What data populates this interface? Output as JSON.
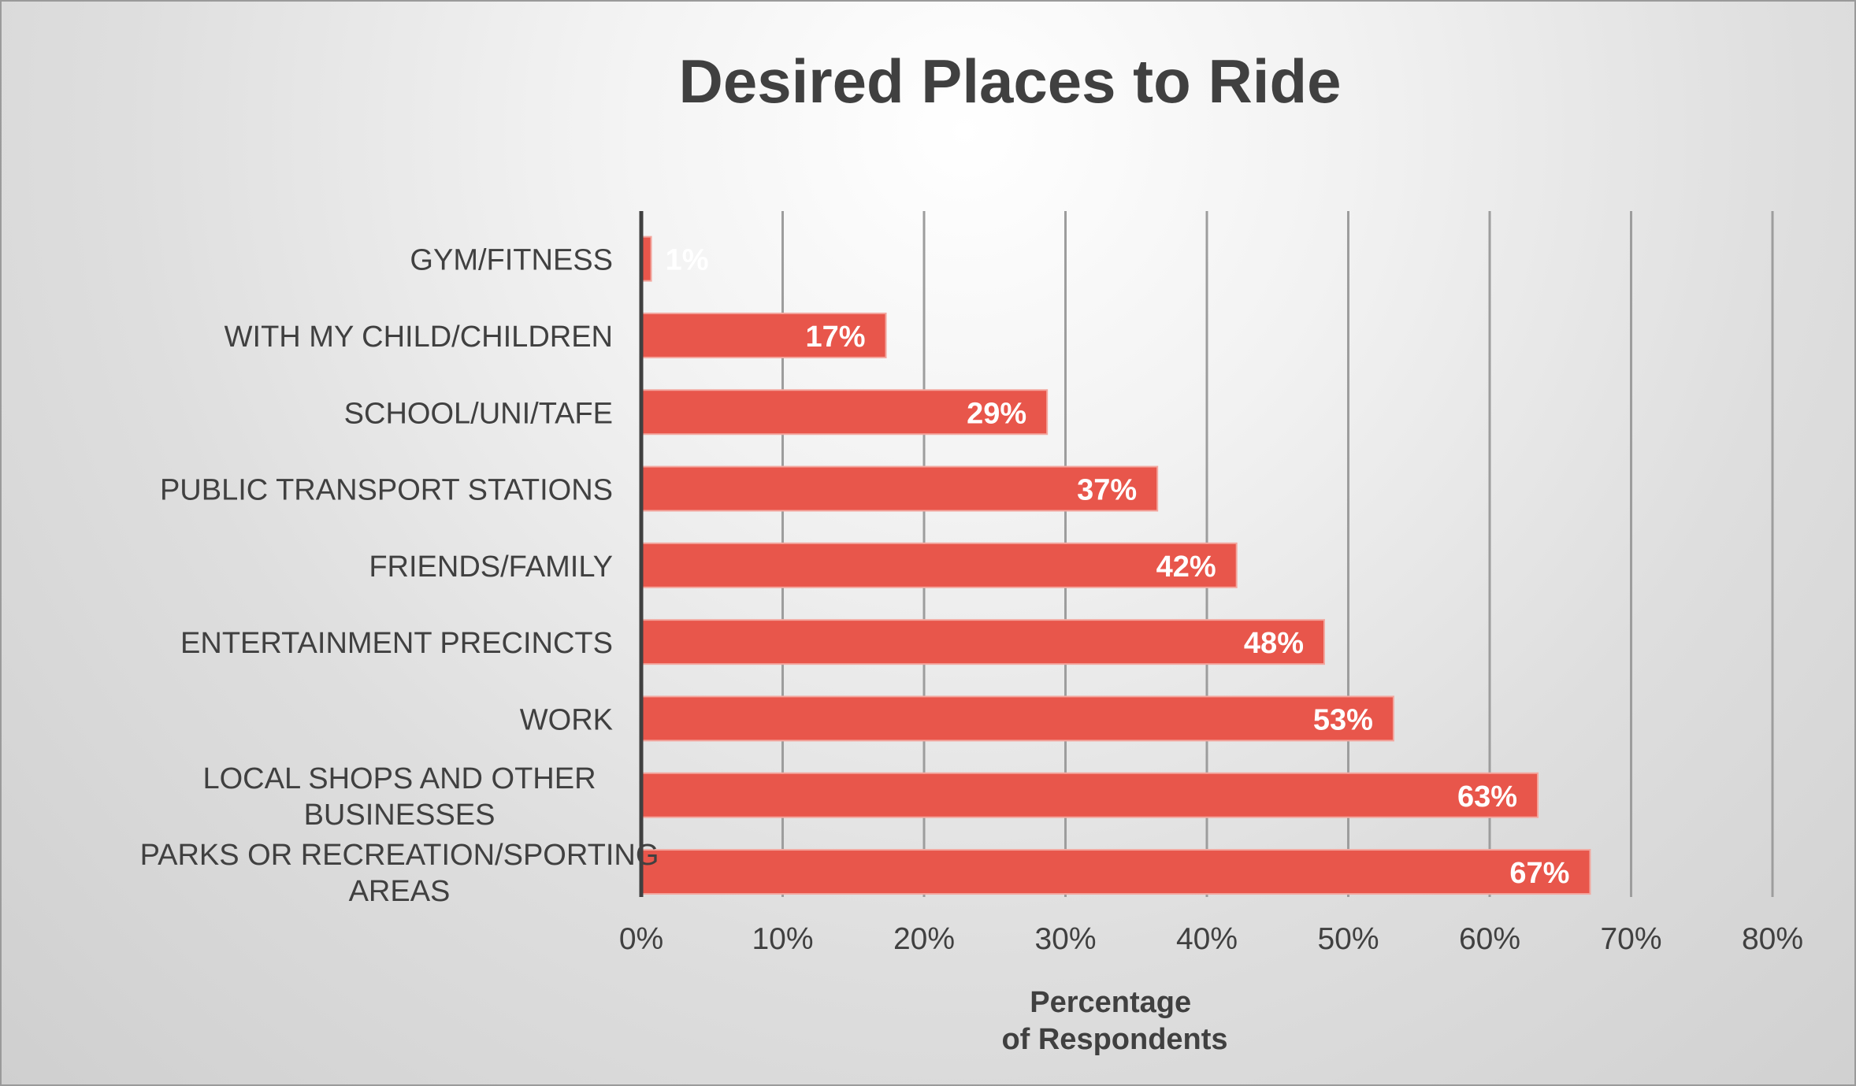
{
  "chart_data": {
    "type": "bar",
    "orientation": "horizontal",
    "title": "Desired Places to Ride",
    "xlabel": [
      "Percentage",
      "of Respondents"
    ],
    "ylabel": "",
    "categories": [
      [
        "GYM/FITNESS"
      ],
      [
        "WITH MY CHILD/CHILDREN"
      ],
      [
        "SCHOOL/UNI/TAFE"
      ],
      [
        "PUBLIC TRANSPORT STATIONS"
      ],
      [
        "FRIENDS/FAMILY"
      ],
      [
        "ENTERTAINMENT PRECINCTS"
      ],
      [
        "WORK"
      ],
      [
        "LOCAL SHOPS AND OTHER",
        "BUSINESSES"
      ],
      [
        "PARKS OR RECREATION/SPORTING",
        "AREAS"
      ]
    ],
    "values": [
      0.7,
      17.3,
      28.7,
      36.5,
      42.1,
      48.3,
      53.2,
      63.4,
      67.1
    ],
    "data_labels": [
      "1%",
      "17%",
      "29%",
      "37%",
      "42%",
      "48%",
      "53%",
      "63%",
      "67%"
    ],
    "xlim": [
      0,
      80
    ],
    "xticks": [
      0,
      10,
      20,
      30,
      40,
      50,
      60,
      70,
      80
    ],
    "xtick_labels": [
      "0%",
      "10%",
      "20%",
      "30%",
      "40%",
      "50%",
      "60%",
      "70%",
      "80%"
    ],
    "grid": "vertical",
    "legend": "none",
    "colors": {
      "bar": "#e8564b",
      "bar_edge": "#f3a79f",
      "grid": "#9d9d9d",
      "axis": "#404040",
      "text": "#404040",
      "data_label": "#ffffff"
    }
  }
}
